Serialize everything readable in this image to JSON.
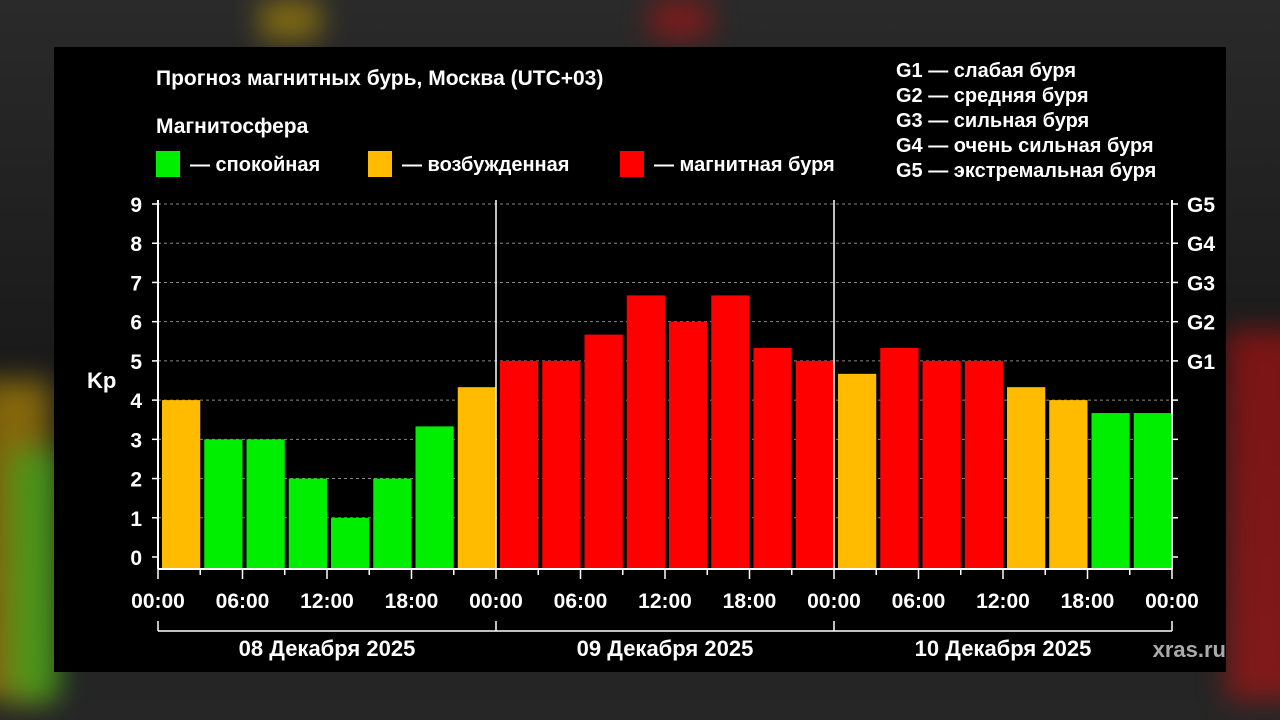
{
  "colors": {
    "calm": "#00ee00",
    "excited": "#ffbb00",
    "storm": "#ff0000",
    "background": "#000000",
    "text": "#ffffff"
  },
  "watermark": "xras.ru",
  "chart_data": {
    "type": "bar",
    "title": "Прогноз магнитных бурь, Москва (UTC+03)",
    "subtitle": "Магнитосфера",
    "ylabel": "Kp",
    "ylim": [
      0,
      9
    ],
    "grid": true,
    "y_ticks": [
      "0",
      "1",
      "2",
      "3",
      "4",
      "5",
      "6",
      "7",
      "8",
      "9"
    ],
    "g_levels": [
      {
        "label": "G1",
        "kp": 5
      },
      {
        "label": "G2",
        "kp": 6
      },
      {
        "label": "G3",
        "kp": 7
      },
      {
        "label": "G4",
        "kp": 8
      },
      {
        "label": "G5",
        "kp": 9
      }
    ],
    "storm_legend": [
      "G1 — слабая буря",
      "G2 — средняя буря",
      "G3 — сильная буря",
      "G4 — очень сильная буря",
      "G5 — экстремальная буря"
    ],
    "status_legend": [
      {
        "label": "— спокойная",
        "status": "calm"
      },
      {
        "label": "— возбужденная",
        "status": "excited"
      },
      {
        "label": "— магнитная буря",
        "status": "storm"
      }
    ],
    "x_tick_labels": [
      "00:00",
      "06:00",
      "12:00",
      "18:00",
      "00:00",
      "06:00",
      "12:00",
      "18:00",
      "00:00",
      "06:00",
      "12:00",
      "18:00",
      "00:00"
    ],
    "days": [
      "08 Декабря 2025",
      "09 Декабря 2025",
      "10 Декабря 2025"
    ],
    "values": [
      4,
      3,
      3,
      2,
      1,
      2,
      3.33,
      4.33,
      5,
      5,
      5.67,
      6.67,
      6,
      6.67,
      5.33,
      5,
      4.67,
      5.33,
      5,
      5,
      4.33,
      4,
      3.67,
      3.67
    ],
    "statuses": [
      "excited",
      "calm",
      "calm",
      "calm",
      "calm",
      "calm",
      "calm",
      "excited",
      "storm",
      "storm",
      "storm",
      "storm",
      "storm",
      "storm",
      "storm",
      "storm",
      "excited",
      "storm",
      "storm",
      "storm",
      "excited",
      "excited",
      "calm",
      "calm"
    ]
  }
}
